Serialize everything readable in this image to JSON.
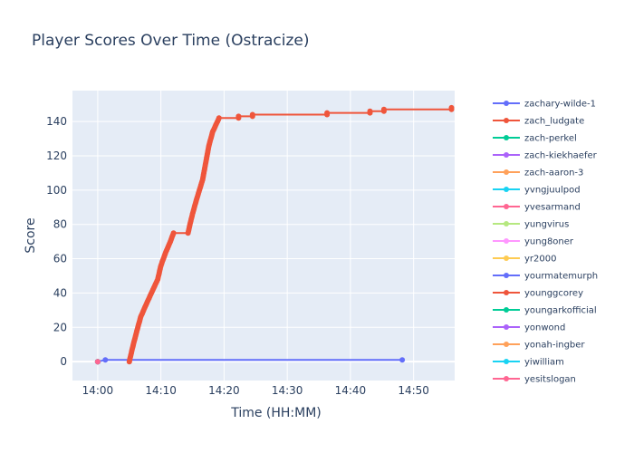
{
  "chart_data": {
    "type": "line",
    "title": "Player Scores Over Time (Ostracize)",
    "xlabel": "Time (HH:MM)",
    "ylabel": "Score",
    "x_ticks": [
      "14:00",
      "14:10",
      "14:20",
      "14:30",
      "14:40",
      "14:50"
    ],
    "x_tick_minutes": [
      0,
      10,
      20,
      30,
      40,
      50
    ],
    "xlim_minutes": [
      -4,
      56.5
    ],
    "y_ticks": [
      0,
      20,
      40,
      60,
      80,
      100,
      120,
      140
    ],
    "ylim": [
      -11,
      158
    ],
    "grid": true,
    "legend_position": "right",
    "series": [
      {
        "name": "zachary-wilde-1",
        "color": "#636efa",
        "points": [
          [
            0.0,
            0
          ],
          [
            1.2,
            1
          ],
          [
            48.2,
            1
          ]
        ]
      },
      {
        "name": "zach_ludgate",
        "color": "#ef553b",
        "points": [
          [
            5.0,
            0
          ],
          [
            5.5,
            8
          ],
          [
            6.2,
            18
          ],
          [
            6.8,
            26
          ],
          [
            7.5,
            32
          ],
          [
            8.5,
            40
          ],
          [
            9.5,
            48
          ],
          [
            10.0,
            56
          ],
          [
            10.8,
            64
          ],
          [
            11.5,
            70
          ],
          [
            12.0,
            75
          ],
          [
            14.3,
            75
          ],
          [
            14.6,
            80
          ],
          [
            15.0,
            86
          ],
          [
            15.6,
            94
          ],
          [
            16.1,
            100
          ],
          [
            16.6,
            106
          ],
          [
            17.1,
            116
          ],
          [
            17.6,
            126
          ],
          [
            18.2,
            134
          ],
          [
            18.7,
            138
          ],
          [
            19.2,
            142
          ],
          [
            22.3,
            142
          ],
          [
            22.3,
            143
          ],
          [
            24.5,
            143
          ],
          [
            24.5,
            144
          ],
          [
            36.3,
            144
          ],
          [
            36.3,
            145
          ],
          [
            43.1,
            145
          ],
          [
            43.1,
            146
          ],
          [
            45.3,
            146
          ],
          [
            45.3,
            147
          ],
          [
            56.0,
            147
          ],
          [
            56.0,
            148
          ]
        ]
      },
      {
        "name": "zach-perkel",
        "color": "#00cc96",
        "points": [
          [
            0.0,
            0
          ]
        ]
      },
      {
        "name": "zach-kiekhaefer",
        "color": "#ab63fa",
        "points": [
          [
            0.0,
            0
          ]
        ]
      },
      {
        "name": "zach-aaron-3",
        "color": "#ffa15a",
        "points": [
          [
            0.0,
            0
          ]
        ]
      },
      {
        "name": "yvngjuulpod",
        "color": "#19d3f3",
        "points": [
          [
            0.0,
            0
          ]
        ]
      },
      {
        "name": "yvesarmand",
        "color": "#ff6692",
        "points": [
          [
            0.0,
            0
          ]
        ]
      },
      {
        "name": "yungvirus",
        "color": "#b6e880",
        "points": [
          [
            0.0,
            0
          ]
        ]
      },
      {
        "name": "yung8oner",
        "color": "#ff97ff",
        "points": [
          [
            0.0,
            0
          ]
        ]
      },
      {
        "name": "yr2000",
        "color": "#fecb52",
        "points": [
          [
            0.0,
            0
          ]
        ]
      },
      {
        "name": "yourmatemurph",
        "color": "#636efa",
        "points": [
          [
            0.0,
            0
          ]
        ]
      },
      {
        "name": "younggcorey",
        "color": "#ef553b",
        "points": [
          [
            0.0,
            0
          ]
        ]
      },
      {
        "name": "youngarkofficial",
        "color": "#00cc96",
        "points": [
          [
            0.0,
            0
          ]
        ]
      },
      {
        "name": "yonwond",
        "color": "#ab63fa",
        "points": [
          [
            0.0,
            0
          ]
        ]
      },
      {
        "name": "yonah-ingber",
        "color": "#ffa15a",
        "points": [
          [
            0.0,
            0
          ]
        ]
      },
      {
        "name": "yiwilliam",
        "color": "#19d3f3",
        "points": [
          [
            0.0,
            0
          ]
        ]
      },
      {
        "name": "yesitslogan",
        "color": "#ff6692",
        "points": [
          [
            0.0,
            0
          ]
        ]
      }
    ]
  }
}
